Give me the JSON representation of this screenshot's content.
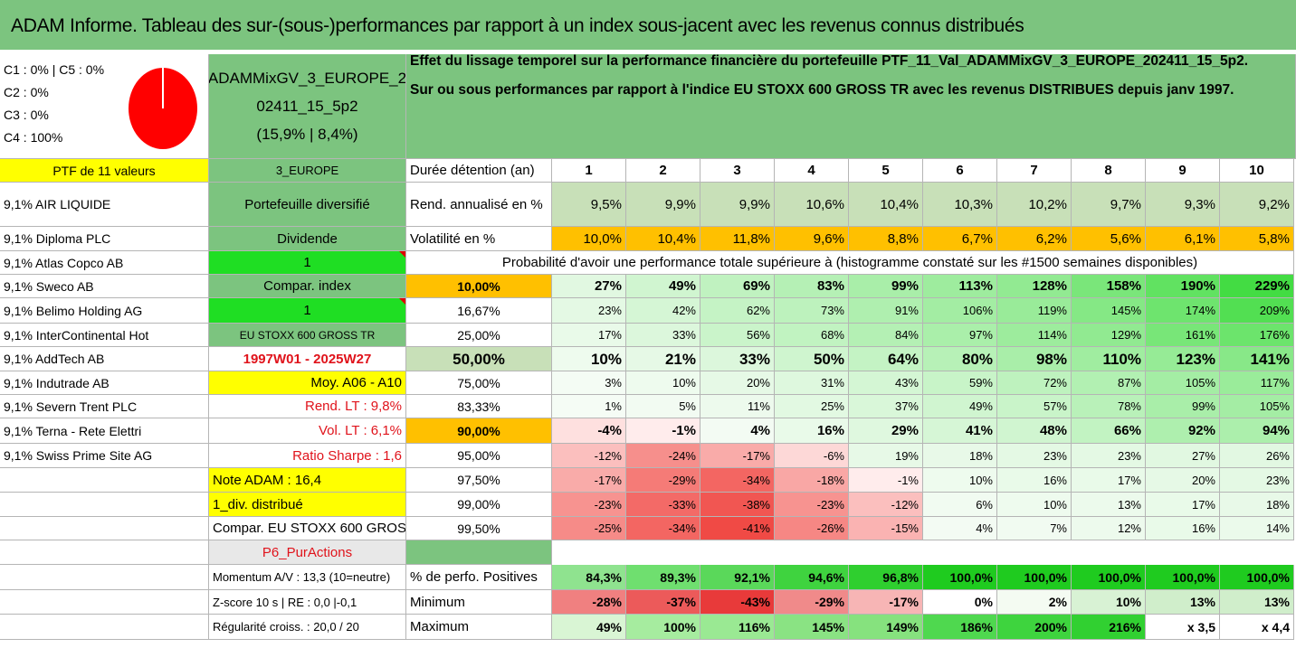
{
  "title": "ADAM Informe. Tableau des sur-(sous-)performances par rapport à un index sous-jacent avec les revenus connus distribués",
  "legend": [
    "C1 : 0% | C5 : 0%",
    "C2 : 0%",
    "C3 : 0%",
    "C4 : 100%"
  ],
  "pie": {
    "color": "#ff0000",
    "share_c4": 1.0
  },
  "portfolio_name_lines": [
    "ADAMMixGV_3_EUROPE_2",
    "02411_15_5p2",
    "(15,9% | 8,4%)"
  ],
  "description_lines": [
    "Effet du lissage temporel sur la performance financière du portefeuille PTF_11_Val_ADAMMixGV_3_EUROPE_202411_15_5p2.",
    "Sur ou sous performances par rapport à l'indice EU STOXX 600 GROSS TR avec les revenus DISTRIBUES depuis janv 1997."
  ],
  "ptf_header": "PTF de 11 valeurs",
  "region": "3_EUROPE",
  "holdings": [
    "9,1% AIR LIQUIDE",
    "9,1% Diploma PLC",
    "9,1% Atlas Copco AB",
    "9,1% Sweco AB",
    "9,1% Belimo Holding AG",
    "9,1% InterContinental Hot",
    "9,1% AddTech AB",
    "9,1% Indutrade AB",
    "9,1% Severn Trent PLC",
    "9,1% Terna - Rete Elettri",
    "9,1% Swiss Prime Site AG"
  ],
  "mid_column": [
    "Portefeuille diversifié",
    "Dividende",
    "1",
    "Compar. index",
    "1",
    "EU STOXX 600 GROSS TR",
    "1997W01 - 2025W27",
    "Moy. A06 - A10",
    "Rend. LT : 9,8%",
    "Vol. LT : 6,1%",
    "Ratio Sharpe : 1,6",
    "Note ADAM : 16,4",
    "1_div. distribué",
    "Compar. EU STOXX 600 GROSS TR",
    "P6_PurActions"
  ],
  "duration_label": "Durée détention (an)",
  "years": [
    "1",
    "2",
    "3",
    "4",
    "5",
    "6",
    "7",
    "8",
    "9",
    "10"
  ],
  "return_label": "Rend. annualisé en %",
  "returns": [
    "9,5%",
    "9,9%",
    "9,9%",
    "10,6%",
    "10,4%",
    "10,3%",
    "10,2%",
    "9,7%",
    "9,3%",
    "9,2%"
  ],
  "vol_label": "Volatilité en %",
  "vols": [
    "10,0%",
    "10,4%",
    "11,8%",
    "9,6%",
    "8,8%",
    "6,7%",
    "6,2%",
    "5,6%",
    "6,1%",
    "5,8%"
  ],
  "prob_header": "Probabilité d'avoir une performance totale supérieure à (histogramme constaté sur les #1500 semaines disponibles)",
  "prob_rows": [
    {
      "p": "10,00%",
      "v": [
        "27%",
        "49%",
        "69%",
        "83%",
        "99%",
        "113%",
        "128%",
        "158%",
        "190%",
        "229%"
      ]
    },
    {
      "p": "16,67%",
      "v": [
        "23%",
        "42%",
        "62%",
        "73%",
        "91%",
        "106%",
        "119%",
        "145%",
        "174%",
        "209%"
      ]
    },
    {
      "p": "25,00%",
      "v": [
        "17%",
        "33%",
        "56%",
        "68%",
        "84%",
        "97%",
        "114%",
        "129%",
        "161%",
        "176%"
      ]
    },
    {
      "p": "50,00%",
      "v": [
        "10%",
        "21%",
        "33%",
        "50%",
        "64%",
        "80%",
        "98%",
        "110%",
        "123%",
        "141%"
      ]
    },
    {
      "p": "75,00%",
      "v": [
        "3%",
        "10%",
        "20%",
        "31%",
        "43%",
        "59%",
        "72%",
        "87%",
        "105%",
        "117%"
      ]
    },
    {
      "p": "83,33%",
      "v": [
        "1%",
        "5%",
        "11%",
        "25%",
        "37%",
        "49%",
        "57%",
        "78%",
        "99%",
        "105%"
      ]
    },
    {
      "p": "90,00%",
      "v": [
        "-4%",
        "-1%",
        "4%",
        "16%",
        "29%",
        "41%",
        "48%",
        "66%",
        "92%",
        "94%"
      ]
    },
    {
      "p": "95,00%",
      "v": [
        "-12%",
        "-24%",
        "-17%",
        "-6%",
        "19%",
        "18%",
        "23%",
        "23%",
        "27%",
        "26%"
      ]
    },
    {
      "p": "97,50%",
      "v": [
        "-17%",
        "-29%",
        "-34%",
        "-18%",
        "-1%",
        "10%",
        "16%",
        "17%",
        "20%",
        "23%"
      ]
    },
    {
      "p": "99,00%",
      "v": [
        "-23%",
        "-33%",
        "-38%",
        "-23%",
        "-12%",
        "6%",
        "10%",
        "13%",
        "17%",
        "18%"
      ]
    },
    {
      "p": "99,50%",
      "v": [
        "-25%",
        "-34%",
        "-41%",
        "-26%",
        "-15%",
        "4%",
        "7%",
        "12%",
        "16%",
        "14%"
      ]
    }
  ],
  "stats_left": [
    "Momentum A/V : 13,3 (10=neutre)",
    "Z-score 10 s | RE : 0,0 |-0,1",
    "Régularité croiss. : 20,0 / 20"
  ],
  "stats": [
    {
      "label": "% de perfo. Positives",
      "v": [
        "84,3%",
        "89,3%",
        "92,1%",
        "94,6%",
        "96,8%",
        "100,0%",
        "100,0%",
        "100,0%",
        "100,0%",
        "100,0%"
      ]
    },
    {
      "label": "Minimum",
      "v": [
        "-28%",
        "-37%",
        "-43%",
        "-29%",
        "-17%",
        "0%",
        "2%",
        "10%",
        "13%",
        "13%"
      ]
    },
    {
      "label": "Maximum",
      "v": [
        "49%",
        "100%",
        "116%",
        "145%",
        "149%",
        "186%",
        "200%",
        "216%",
        "x 3,5",
        "x 4,4"
      ]
    }
  ],
  "colors": {
    "header_green": "#7cc47f",
    "mid_green": "#8ccf8e",
    "yellow": "#ffff00",
    "bright_green": "#1fde23",
    "orange": "#ffc000",
    "pale_green": "#c8e0b8",
    "red_text": "#e0131b"
  }
}
